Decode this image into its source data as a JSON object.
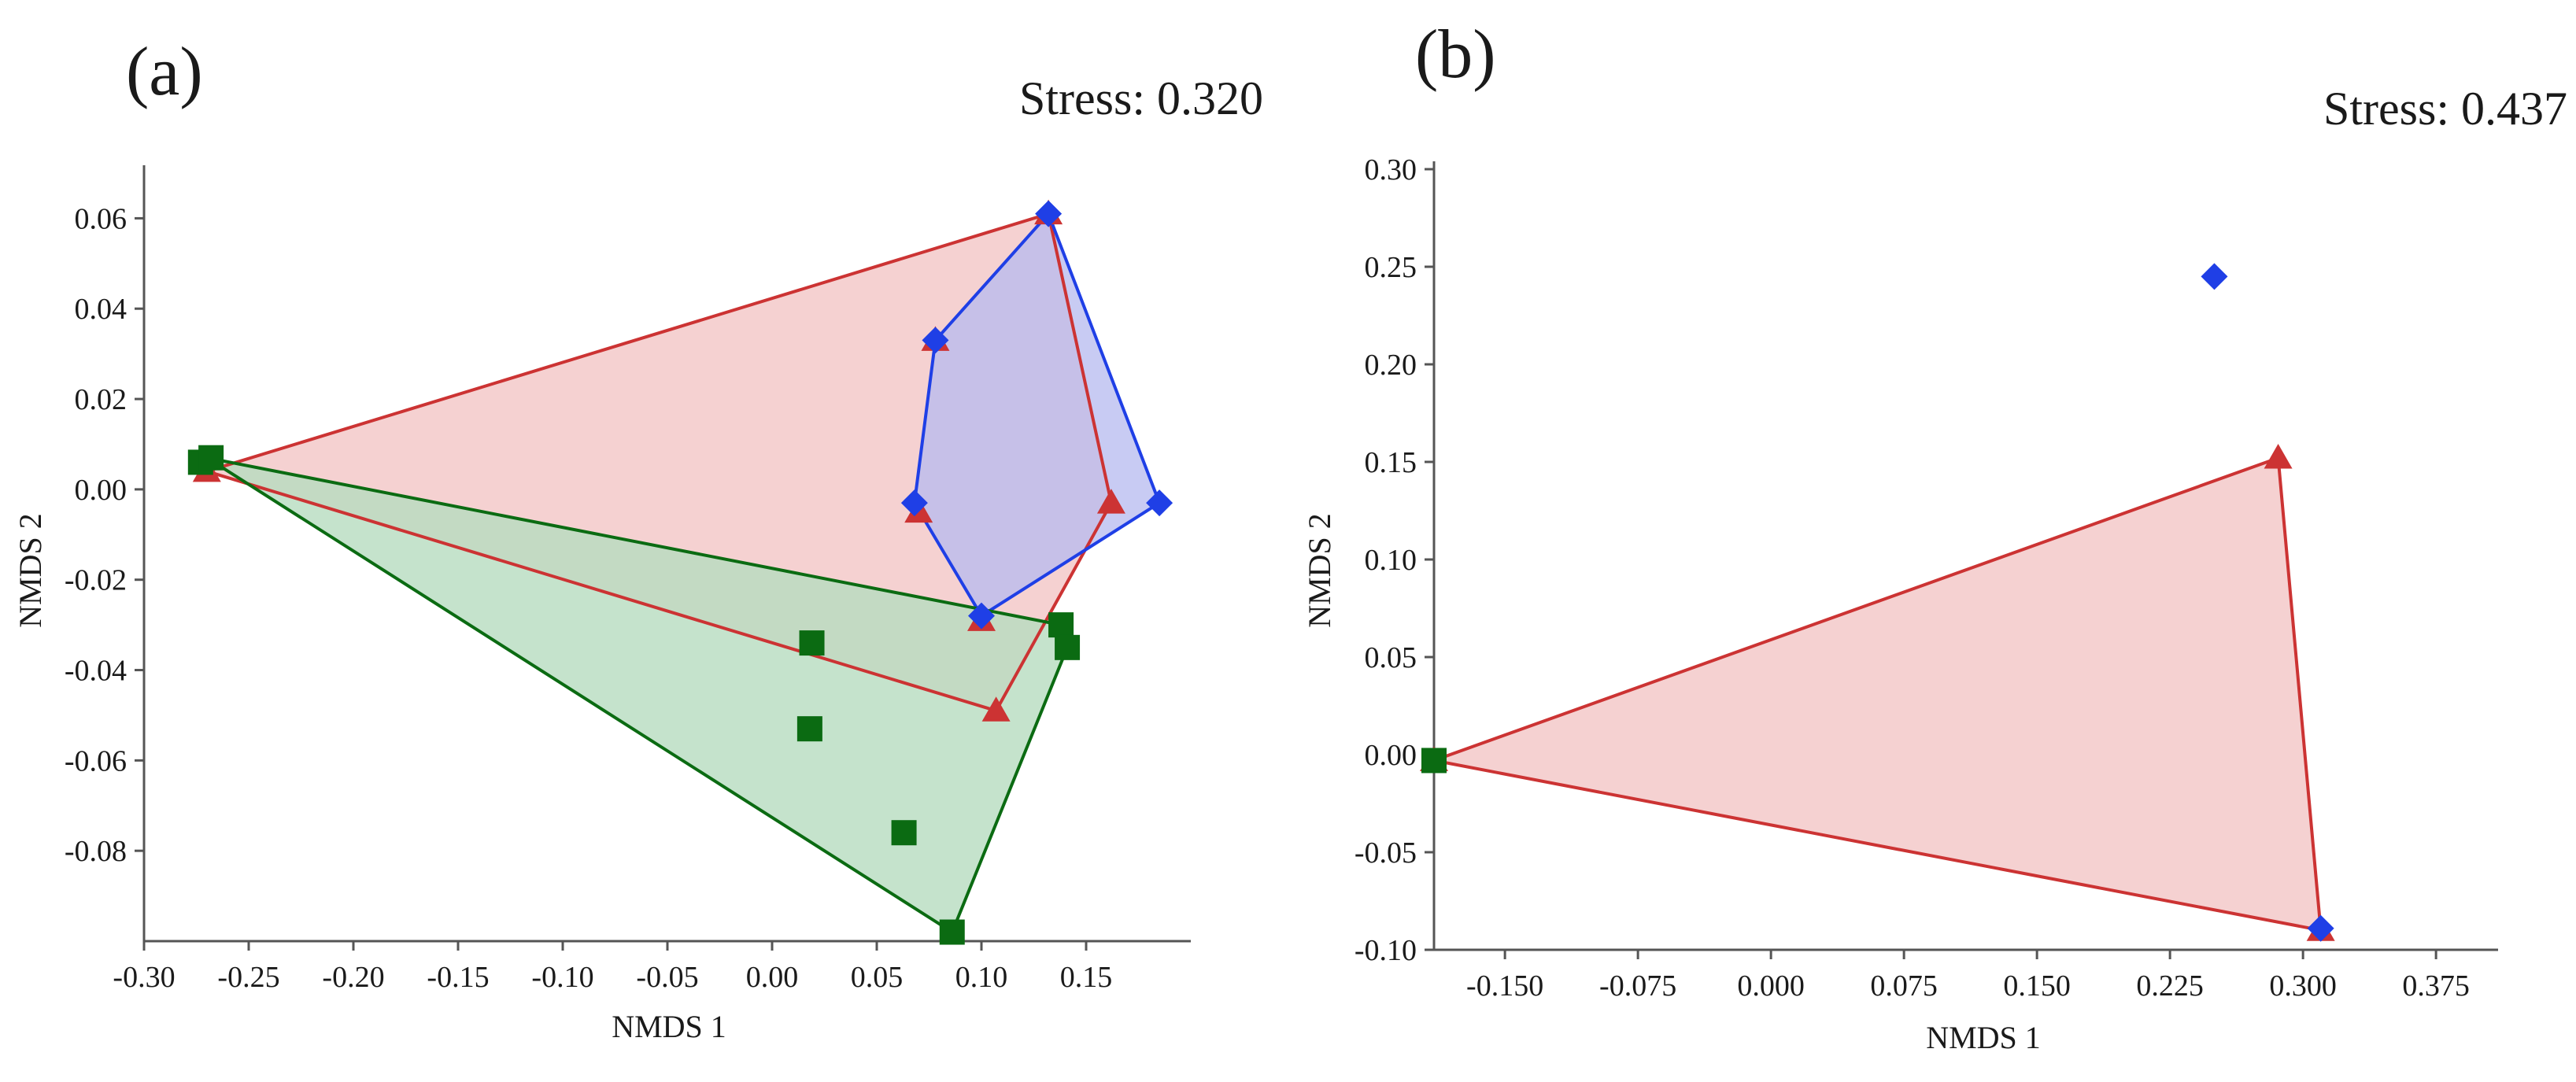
{
  "colors": {
    "red": "#cc3333",
    "red_fill": "#f2c6c6",
    "blue": "#1f3fe6",
    "blue_fill": "#b5b9ef",
    "green": "#0b6b12",
    "green_fill": "#b6dcbf",
    "axis": "#555555"
  },
  "chart_data": [
    {
      "type": "scatter",
      "panel_label": "(a)",
      "stress_text": "Stress: 0.320",
      "xlabel": "NMDS 1",
      "ylabel": "NMDS 2",
      "xlim": [
        -0.3,
        0.2
      ],
      "ylim": [
        -0.1,
        0.07
      ],
      "x_ticks": [
        -0.3,
        -0.25,
        -0.2,
        -0.15,
        -0.1,
        -0.05,
        0.0,
        0.05,
        0.1,
        0.15
      ],
      "x_tick_labels": [
        "-0.30",
        "-0.25",
        "-0.20",
        "-0.15",
        "-0.10",
        "-0.05",
        "0.00",
        "0.05",
        "0.10",
        "0.15"
      ],
      "y_ticks": [
        0.06,
        0.04,
        0.02,
        0.0,
        -0.02,
        -0.04,
        -0.06,
        -0.08
      ],
      "y_tick_labels": [
        "0.06",
        "0.04",
        "0.02",
        "0.00",
        "-0.02",
        "-0.04",
        "-0.06",
        "-0.08"
      ],
      "series": [
        {
          "name": "red-triangles",
          "marker": "triangle",
          "color_key": "red",
          "points": [
            [
              -0.27,
              0.004
            ],
            [
              0.132,
              0.061
            ],
            [
              0.162,
              -0.003
            ],
            [
              0.107,
              -0.049
            ],
            [
              0.1,
              -0.029
            ],
            [
              0.078,
              0.033
            ],
            [
              0.07,
              -0.005
            ]
          ],
          "hull": [
            [
              -0.27,
              0.004
            ],
            [
              0.132,
              0.061
            ],
            [
              0.162,
              -0.003
            ],
            [
              0.107,
              -0.049
            ]
          ]
        },
        {
          "name": "blue-diamonds",
          "marker": "diamond",
          "color_key": "blue",
          "points": [
            [
              0.132,
              0.061
            ],
            [
              0.185,
              -0.003
            ],
            [
              0.1,
              -0.028
            ],
            [
              0.068,
              -0.003
            ],
            [
              0.078,
              0.033
            ]
          ],
          "hull": [
            [
              0.078,
              0.033
            ],
            [
              0.132,
              0.061
            ],
            [
              0.185,
              -0.003
            ],
            [
              0.1,
              -0.028
            ],
            [
              0.068,
              -0.003
            ]
          ]
        },
        {
          "name": "green-squares",
          "marker": "square",
          "color_key": "green",
          "points": [
            [
              -0.273,
              0.006
            ],
            [
              -0.268,
              0.007
            ],
            [
              0.138,
              -0.03
            ],
            [
              0.141,
              -0.035
            ],
            [
              0.019,
              -0.034
            ],
            [
              0.018,
              -0.053
            ],
            [
              0.063,
              -0.076
            ],
            [
              0.086,
              -0.098
            ]
          ],
          "hull": [
            [
              -0.27,
              0.007
            ],
            [
              0.138,
              -0.03
            ],
            [
              0.141,
              -0.035
            ],
            [
              0.086,
              -0.098
            ]
          ]
        }
      ]
    },
    {
      "type": "scatter",
      "panel_label": "(b)",
      "stress_text": "Stress: 0.437",
      "xlabel": "NMDS 1",
      "ylabel": "NMDS 2",
      "xlim": [
        -0.19,
        0.41
      ],
      "ylim": [
        -0.1,
        0.3
      ],
      "x_ticks": [
        -0.15,
        -0.075,
        0.0,
        0.075,
        0.15,
        0.225,
        0.3,
        0.375
      ],
      "x_tick_labels": [
        "-0.150",
        "-0.075",
        "0.000",
        "0.075",
        "0.150",
        "0.225",
        "0.300",
        "0.375"
      ],
      "y_ticks": [
        0.3,
        0.25,
        0.2,
        0.15,
        0.1,
        0.05,
        0.0,
        -0.05,
        -0.1
      ],
      "y_tick_labels": [
        "0.30",
        "0.25",
        "0.20",
        "0.15",
        "0.10",
        "0.05",
        "0.00",
        "-0.05",
        "-0.10"
      ],
      "series": [
        {
          "name": "red-triangles",
          "marker": "triangle",
          "color_key": "red",
          "points": [
            [
              -0.19,
              -0.003
            ],
            [
              0.286,
              0.152
            ],
            [
              0.31,
              -0.09
            ]
          ],
          "hull": [
            [
              -0.19,
              -0.003
            ],
            [
              0.286,
              0.152
            ],
            [
              0.31,
              -0.09
            ]
          ]
        },
        {
          "name": "blue-diamonds",
          "marker": "diamond",
          "color_key": "blue",
          "points": [
            [
              0.25,
              0.245
            ],
            [
              0.31,
              -0.089
            ]
          ],
          "hull": []
        },
        {
          "name": "green-squares",
          "marker": "square",
          "color_key": "green",
          "points": [
            [
              -0.19,
              -0.003
            ]
          ],
          "hull": []
        }
      ]
    }
  ]
}
